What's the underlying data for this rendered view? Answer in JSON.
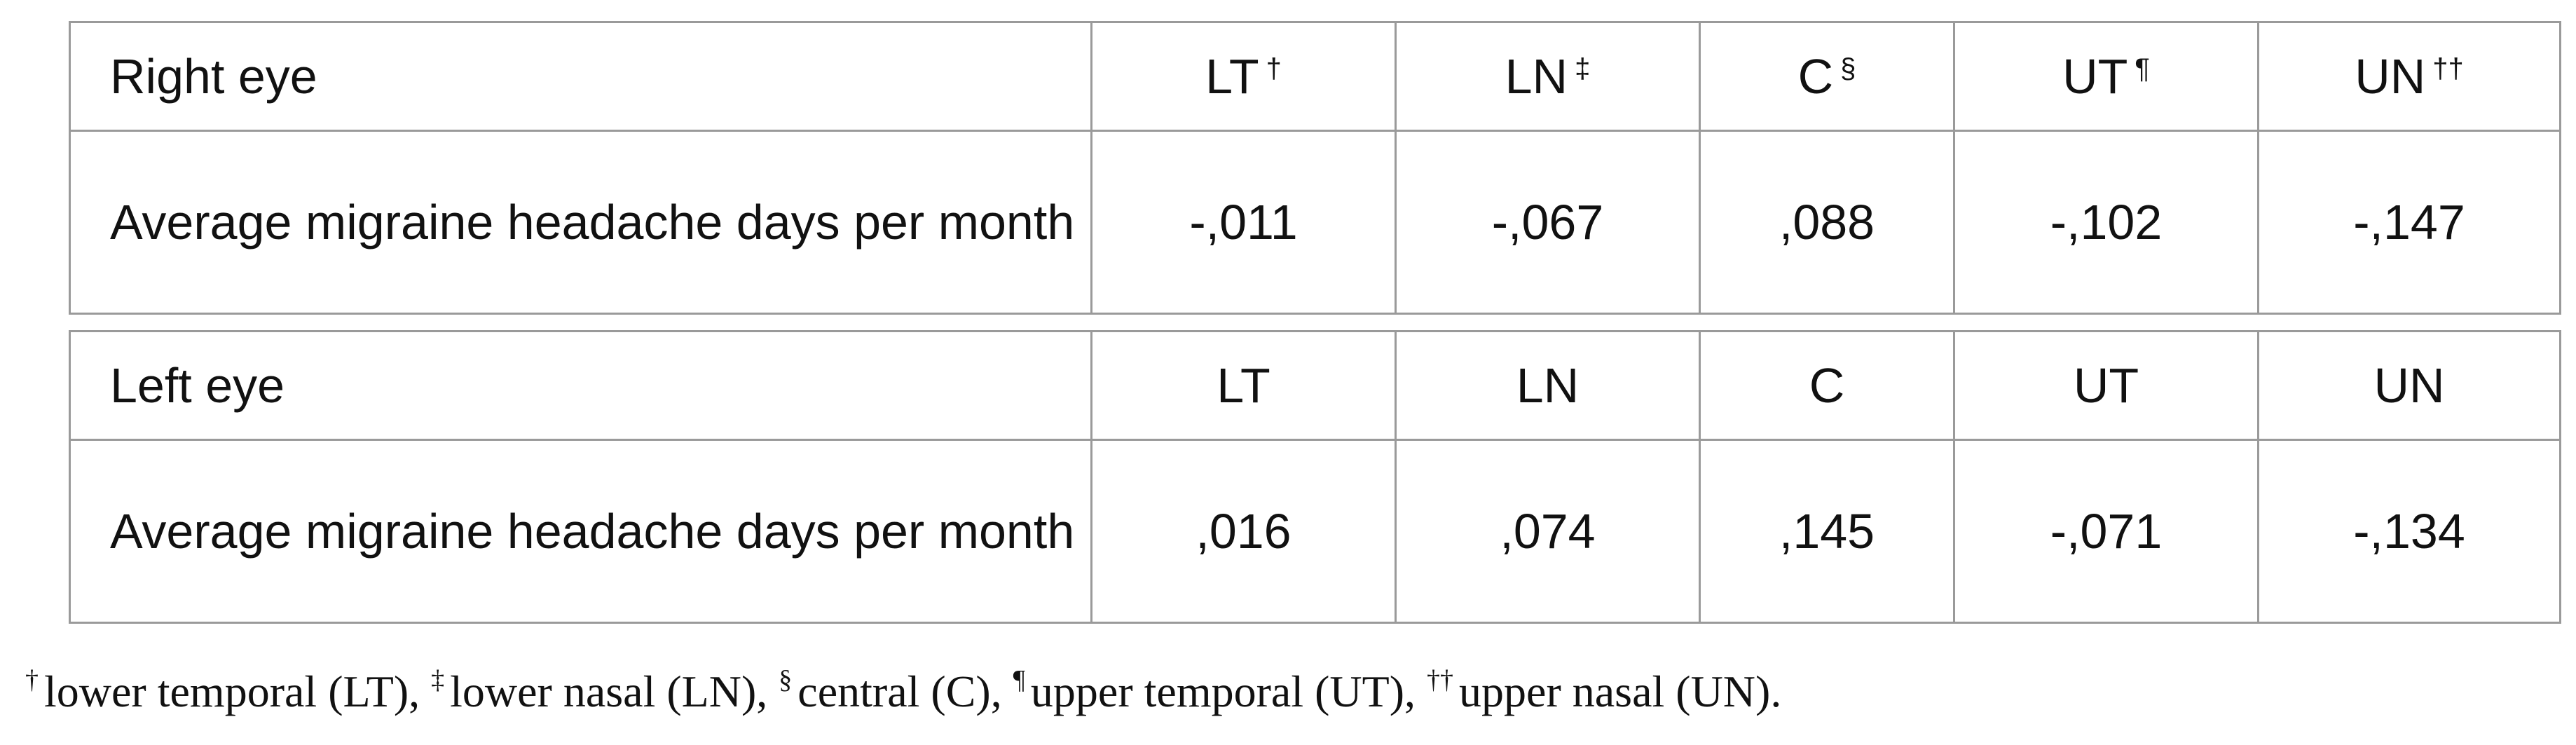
{
  "tables": [
    {
      "header": [
        "Right eye",
        "LT",
        "LN",
        "C",
        "UT",
        "UN"
      ],
      "header_marks": [
        null,
        "†",
        "‡",
        "§",
        "¶",
        "††"
      ],
      "rows": [
        [
          "Average migraine headache days per month",
          "-,011",
          "-,067",
          ",088",
          "-,102",
          "-,147"
        ]
      ]
    },
    {
      "header": [
        "Left eye",
        "LT",
        "LN",
        "C",
        "UT",
        "UN"
      ],
      "rows": [
        [
          "Average migraine headache days per month",
          ",016",
          ",074",
          ",145",
          "-,071",
          "-,134"
        ]
      ]
    }
  ],
  "footnote": [
    {
      "mark": "†",
      "text": "lower temporal (LT),"
    },
    {
      "mark": "‡",
      "text": "lower nasal (LN),"
    },
    {
      "mark": "§",
      "text": "central (C),"
    },
    {
      "mark": "¶",
      "text": "upper temporal (UT),"
    },
    {
      "mark": "††",
      "text": "upper nasal (UN)."
    }
  ]
}
